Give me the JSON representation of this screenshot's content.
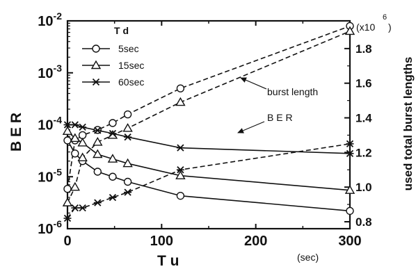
{
  "chart_data": {
    "type": "line",
    "xlabel": "T u",
    "xunit": "(sec)",
    "ylabel": "B E R",
    "y2label": "used total burst lengths",
    "y2multiplier": "(x10",
    "y2multiplier_exp": "6",
    "y2multiplier_close": ")",
    "legend_title": "T d",
    "xlim": [
      0,
      300
    ],
    "ylim": [
      1e-06,
      0.01
    ],
    "yscale": "log",
    "y2lim": [
      0.76,
      1.96
    ],
    "xticks": [
      "0",
      "100",
      "200",
      "300"
    ],
    "yticks": [
      {
        "base": "10",
        "exp": "-6"
      },
      {
        "base": "10",
        "exp": "-5"
      },
      {
        "base": "10",
        "exp": "-4"
      },
      {
        "base": "10",
        "exp": "-3"
      },
      {
        "base": "10",
        "exp": "-2"
      }
    ],
    "y2ticks": [
      "0.8",
      "1.0",
      "1.2",
      "1.4",
      "1.6",
      "1.8"
    ],
    "annotations": [
      {
        "text": "burst length"
      },
      {
        "text": "B E R"
      }
    ],
    "series": [
      {
        "name": "5sec",
        "marker": "circle",
        "x": [
          0,
          8,
          16,
          32,
          48,
          64,
          120,
          300
        ],
        "ber": [
          5e-05,
          2.8e-05,
          2e-05,
          1.25e-05,
          1e-05,
          8e-06,
          4.3e-06,
          2.2e-06
        ],
        "burst": [
          0.99,
          1.27,
          1.3,
          1.33,
          1.37,
          1.42,
          1.57,
          1.93
        ]
      },
      {
        "name": "15sec",
        "marker": "triangle",
        "x": [
          0,
          8,
          16,
          32,
          48,
          64,
          120,
          300
        ],
        "ber": [
          7.5e-05,
          5.5e-05,
          4.5e-05,
          2.7e-05,
          2.2e-05,
          1.8e-05,
          1.05e-05,
          5.5e-06
        ],
        "burst": [
          0.91,
          1.0,
          1.17,
          1.26,
          1.3,
          1.34,
          1.49,
          1.9
        ]
      },
      {
        "name": "60sec",
        "marker": "star",
        "x": [
          0,
          8,
          16,
          32,
          48,
          64,
          120,
          300
        ],
        "ber": [
          0.0001,
          0.0001,
          9e-05,
          7.8e-05,
          6.8e-05,
          5.8e-05,
          3.6e-05,
          2.8e-05
        ],
        "burst": [
          0.82,
          0.88,
          0.88,
          0.91,
          0.94,
          0.97,
          1.1,
          1.25
        ]
      }
    ]
  }
}
